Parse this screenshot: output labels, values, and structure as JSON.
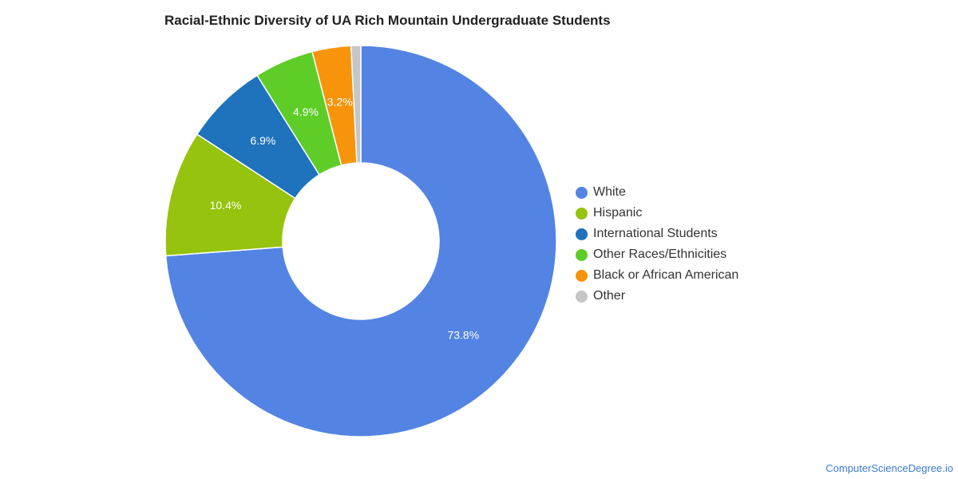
{
  "chart_data": {
    "type": "pie",
    "title": "Racial-Ethnic Diversity of UA Rich Mountain Undergraduate Students",
    "donut": true,
    "legend_position": "right",
    "series": [
      {
        "name": "White",
        "value": 73.8,
        "label": "73.8%",
        "color": "#5384e3"
      },
      {
        "name": "Hispanic",
        "value": 10.4,
        "label": "10.4%",
        "color": "#95c30e"
      },
      {
        "name": "International Students",
        "value": 6.9,
        "label": "6.9%",
        "color": "#1f72bc"
      },
      {
        "name": "Other Races/Ethnicities",
        "value": 4.9,
        "label": "4.9%",
        "color": "#5ecd28"
      },
      {
        "name": "Black or African American",
        "value": 3.2,
        "label": "3.2%",
        "color": "#f7940b"
      },
      {
        "name": "Other",
        "value": 0.8,
        "label": "",
        "color": "#c6c6c6"
      }
    ]
  },
  "footer": {
    "source_link": "ComputerScienceDegree.io"
  }
}
